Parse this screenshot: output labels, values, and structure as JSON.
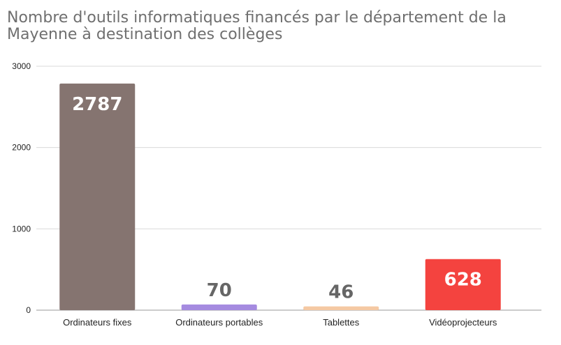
{
  "chart_data": {
    "type": "bar",
    "title_lines": [
      "Nombre d'outils informatiques financés par le département de la",
      "Mayenne à destination des collèges"
    ],
    "categories": [
      "Ordinateurs fixes",
      "Ordinateurs portables",
      "Tablettes",
      "Vidéoprojecteurs"
    ],
    "values": [
      2787,
      70,
      46,
      628
    ],
    "data_labels": [
      "2787",
      "70",
      "46",
      "628"
    ],
    "colors": [
      "#857470",
      "#a58be0",
      "#f5c9a3",
      "#f4433f"
    ],
    "label_colors": [
      "#ffffff",
      "#666666",
      "#666666",
      "#ffffff"
    ],
    "label_inside": [
      true,
      false,
      false,
      true
    ],
    "ylim": [
      0,
      3000
    ],
    "yticks": [
      0,
      1000,
      2000,
      3000
    ],
    "ytick_labels": [
      "0",
      "1000",
      "2000",
      "3000"
    ],
    "grid": true,
    "xlabel": "",
    "ylabel": ""
  }
}
